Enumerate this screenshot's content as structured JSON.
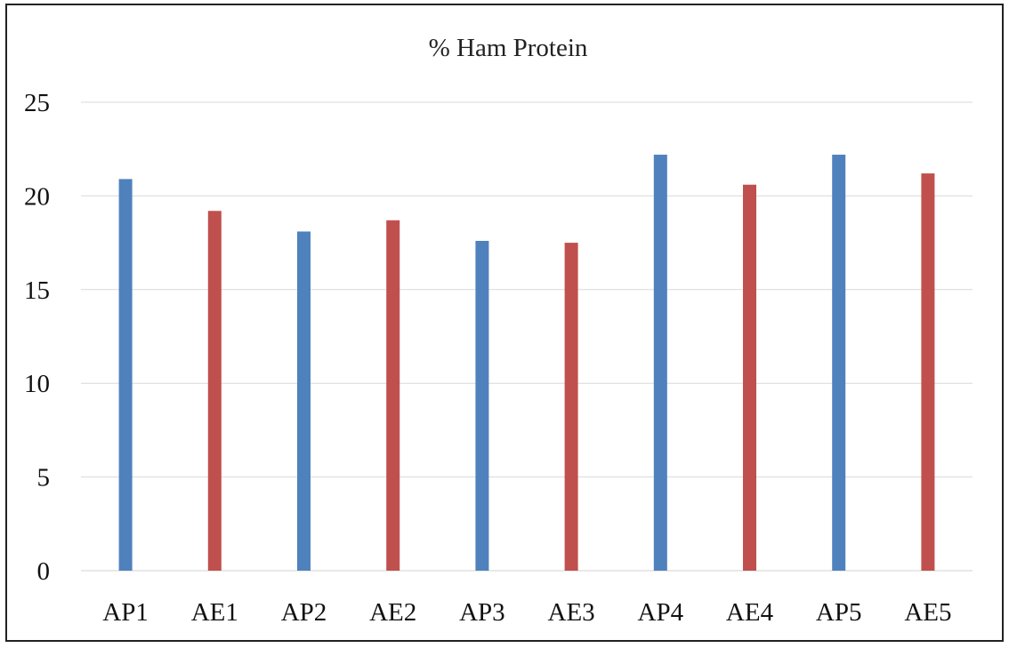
{
  "chart_data": {
    "type": "bar",
    "title": "% Ham Protein",
    "xlabel": "",
    "ylabel": "",
    "categories": [
      "AP1",
      "AE1",
      "AP2",
      "AE2",
      "AP3",
      "AE3",
      "AP4",
      "AE4",
      "AP5",
      "AE5"
    ],
    "values": [
      20.9,
      19.2,
      18.1,
      18.7,
      17.6,
      17.5,
      22.2,
      20.6,
      22.2,
      21.2
    ],
    "bar_colors": [
      "#4f81bd",
      "#c0504d",
      "#4f81bd",
      "#c0504d",
      "#4f81bd",
      "#c0504d",
      "#4f81bd",
      "#c0504d",
      "#4f81bd",
      "#c0504d"
    ],
    "ylim": [
      0,
      25
    ],
    "yticks": [
      0,
      5,
      10,
      15,
      20,
      25
    ],
    "grid": true,
    "legend": "none"
  }
}
